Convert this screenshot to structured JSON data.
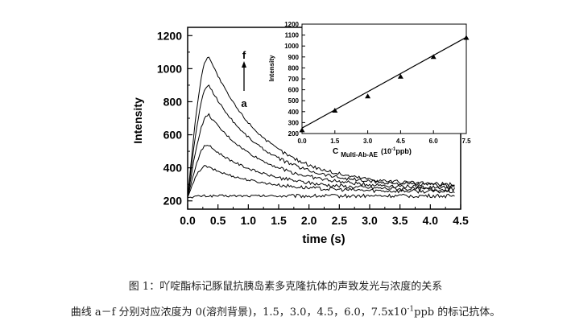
{
  "chart_data": [
    {
      "type": "line",
      "xlabel": "time (s)",
      "ylabel": "Intensity",
      "xlim": [
        0,
        4.5
      ],
      "ylim": [
        150,
        1250
      ],
      "xticks": [
        "0.0",
        "0.5",
        "1.0",
        "1.5",
        "2.0",
        "2.5",
        "3.0",
        "3.5",
        "4.0",
        "4.5"
      ],
      "yticks": [
        "200",
        "400",
        "600",
        "800",
        "1000",
        "1200"
      ],
      "annotations": {
        "top": "f",
        "bottom": "a"
      },
      "series": [
        {
          "peak_time": 0.3,
          "peak": 230,
          "tail": 230
        },
        {
          "peak_time": 0.3,
          "peak": 410,
          "tail": 255
        },
        {
          "peak_time": 0.33,
          "peak": 540,
          "tail": 265
        },
        {
          "peak_time": 0.35,
          "peak": 720,
          "tail": 275
        },
        {
          "peak_time": 0.35,
          "peak": 900,
          "tail": 285
        },
        {
          "peak_time": 0.35,
          "peak": 1075,
          "tail": 290
        }
      ]
    },
    {
      "type": "scatter",
      "xlabel_main": "C",
      "xlabel_sub": "Multi-Ab-AE",
      "xlabel_unit": "(10",
      "xlabel_exp": "-1",
      "xlabel_end": "ppb)",
      "ylabel": "Intensity",
      "xlim": [
        0,
        7.5
      ],
      "ylim": [
        200,
        1200
      ],
      "xticks": [
        "0.0",
        "1.5",
        "3.0",
        "4.5",
        "6.0",
        "7.5"
      ],
      "yticks": [
        "200",
        "300",
        "400",
        "500",
        "600",
        "700",
        "800",
        "900",
        "1000",
        "1100",
        "1200"
      ],
      "x": [
        0,
        1.5,
        3.0,
        4.5,
        6.0,
        7.5
      ],
      "y": [
        230,
        410,
        540,
        720,
        900,
        1075
      ],
      "fit": {
        "x0": 0,
        "y0": 250,
        "x1": 7.5,
        "y1": 1080
      }
    }
  ],
  "caption": {
    "line1": "图 1：吖啶酯标记豚鼠抗胰岛素多克隆抗体的声致发光与浓度的关系",
    "line2_pre": "曲线 a－f 分别对应浓度为 0(溶剂背景)，1.5，3.0，4.5，6.0，7.5x10",
    "line2_sup": "-1",
    "line2_post": "ppb 的标记抗体。"
  }
}
